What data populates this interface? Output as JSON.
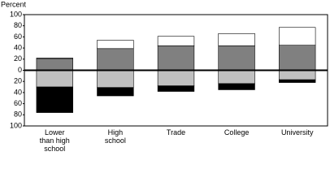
{
  "chart_data": {
    "type": "bar",
    "stacked": true,
    "y_label": "Percent",
    "categories": [
      "Lower than high school",
      "High school",
      "Trade",
      "College",
      "University"
    ],
    "series": [
      {
        "color": "#808080",
        "values": [
          21,
          39,
          44,
          44,
          45
        ]
      },
      {
        "color": "#ffffff",
        "values": [
          1,
          15,
          17,
          22,
          32
        ]
      },
      {
        "color": "#c0c0c0",
        "values": [
          -30,
          -31,
          -28,
          -24,
          -17
        ]
      },
      {
        "color": "#000000",
        "values": [
          -46,
          -15,
          -10,
          -11,
          -5
        ]
      }
    ],
    "ylim": [
      -100,
      100
    ],
    "yticks": [
      {
        "value": -100,
        "label": "100"
      },
      {
        "value": -80,
        "label": "80"
      },
      {
        "value": -60,
        "label": "60"
      },
      {
        "value": -40,
        "label": "40"
      },
      {
        "value": -20,
        "label": "20"
      },
      0,
      20,
      40,
      60,
      80,
      100
    ],
    "grid": false
  }
}
